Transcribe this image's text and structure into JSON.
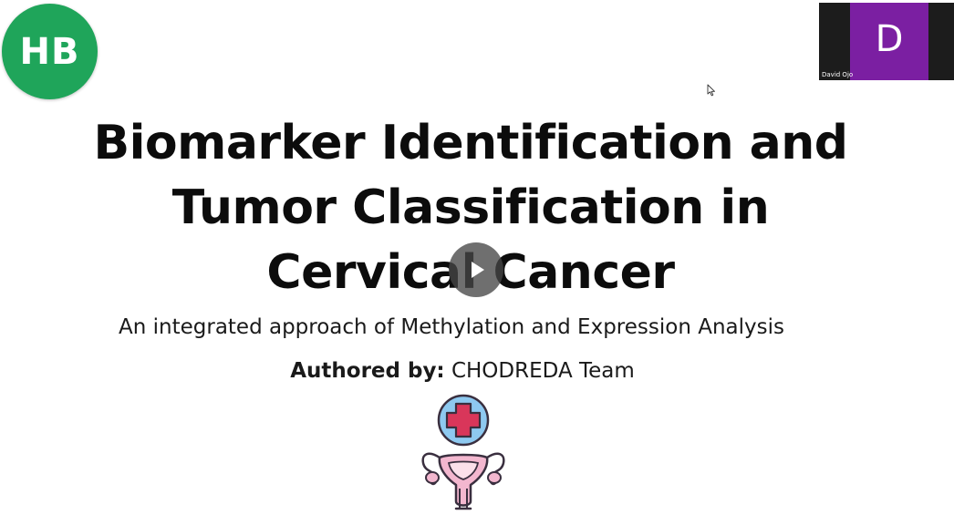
{
  "meeting": {
    "self_avatar_initials": "HB",
    "participant": {
      "initial": "D",
      "name": "David Ojo"
    }
  },
  "slide": {
    "title_lines": [
      "Biomarker Identification and",
      "Tumor Classification in",
      "Cervical Cancer"
    ],
    "subtitle": "An integrated approach of Methylation and Expression Analysis",
    "authored_label": "Authored by:",
    "authored_value": " CHODREDA Team",
    "icon": "uterus-medical-icon"
  },
  "controls": {
    "play_icon": "play-icon"
  },
  "colors": {
    "avatar_green": "#1fa55a",
    "participant_purple": "#7b1fa2",
    "play_overlay": "#464646",
    "icon_blue": "#8ec9f0",
    "icon_red": "#d9365a",
    "icon_pink": "#f3b7cf"
  }
}
